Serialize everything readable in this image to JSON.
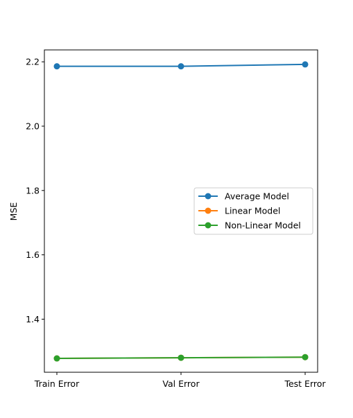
{
  "chart_data": {
    "type": "line",
    "title": "",
    "xlabel": "",
    "ylabel": "MSE",
    "categories": [
      "Train Error",
      "Val Error",
      "Test Error"
    ],
    "ylim": [
      1.235,
      2.237
    ],
    "yticks": [
      1.4,
      1.6,
      1.8,
      2.0,
      2.2
    ],
    "ytick_labels": [
      "1.4",
      "1.6",
      "1.8",
      "2.0",
      "2.2"
    ],
    "grid": false,
    "legend_position": "center-right",
    "series": [
      {
        "name": "Average Model",
        "color": "#1f77b4",
        "marker": "circle",
        "values": [
          2.186,
          2.186,
          2.192
        ]
      },
      {
        "name": "Linear Model",
        "color": "#ff7f0e",
        "marker": "circle",
        "values": [
          1.278,
          1.28,
          1.282
        ]
      },
      {
        "name": "Non-Linear Model",
        "color": "#2ca02c",
        "marker": "circle",
        "values": [
          1.278,
          1.28,
          1.282
        ]
      }
    ]
  }
}
